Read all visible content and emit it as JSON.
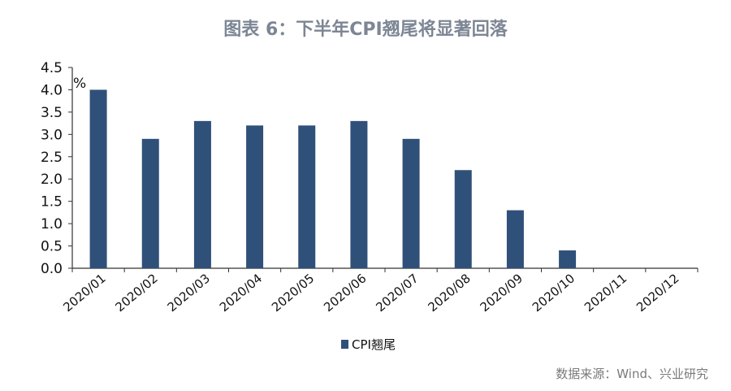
{
  "title": "图表 6：下半年CPI翘尾将显著回落",
  "source": "数据来源：Wind、兴业研究",
  "chart_data": {
    "type": "bar",
    "title": "图表 6：下半年CPI翘尾将显著回落",
    "xlabel": "",
    "ylabel": "%",
    "ylim": [
      0,
      4.5
    ],
    "ytick_step": 0.5,
    "y_tick_labels": [
      "0.0",
      "0.5",
      "1.0",
      "1.5",
      "2.0",
      "2.5",
      "3.0",
      "3.5",
      "4.0",
      "4.5"
    ],
    "categories": [
      "2020/01",
      "2020/02",
      "2020/03",
      "2020/04",
      "2020/05",
      "2020/06",
      "2020/07",
      "2020/08",
      "2020/09",
      "2020/10",
      "2020/11",
      "2020/12"
    ],
    "series": [
      {
        "name": "CPI翘尾",
        "color": "#2f5079",
        "values": [
          4.0,
          2.9,
          3.3,
          3.2,
          3.2,
          3.3,
          2.9,
          2.2,
          1.3,
          0.4,
          0.0,
          0.0
        ]
      }
    ],
    "grid": false,
    "legend_position": "bottom-center"
  }
}
